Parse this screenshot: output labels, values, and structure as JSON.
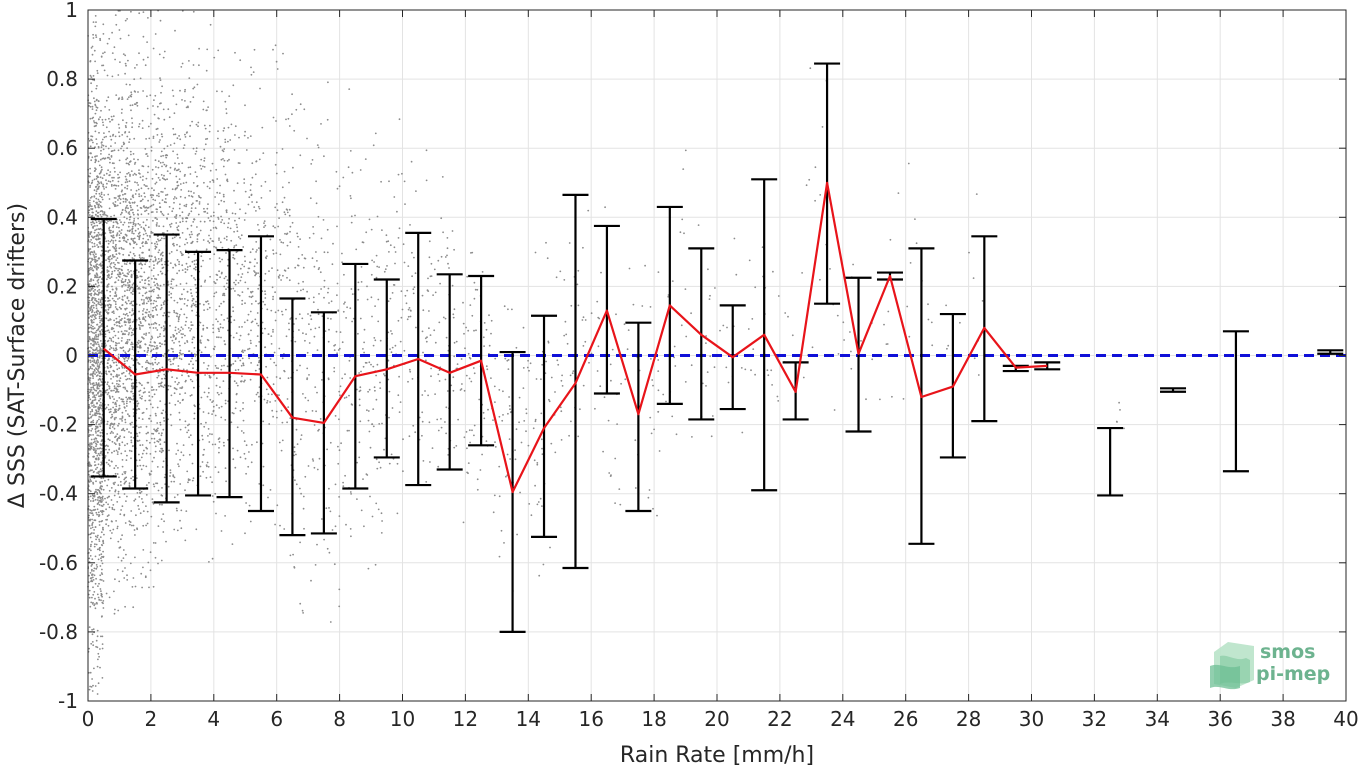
{
  "chart_data": {
    "type": "scatter",
    "xlabel": "Rain Rate [mm/h]",
    "ylabel": "Δ SSS (SAT-Surface drifters)",
    "xlim": [
      0,
      40
    ],
    "ylim": [
      -1,
      1
    ],
    "x_ticks": [
      "0",
      "2",
      "4",
      "6",
      "8",
      "10",
      "12",
      "14",
      "16",
      "18",
      "20",
      "22",
      "24",
      "26",
      "28",
      "30",
      "32",
      "34",
      "36",
      "38",
      "40"
    ],
    "y_ticks": [
      "1",
      "0.8",
      "0.6",
      "0.4",
      "0.2",
      "0",
      "-0.2",
      "-0.4",
      "-0.6",
      "-0.8",
      "-1"
    ],
    "grid": true,
    "colors": {
      "scatter": "#8c8c8c",
      "median_line": "#e8141a",
      "error_bars": "#000000",
      "zero_line": "#1010d8",
      "grid": "#e3e3e3"
    },
    "reference_line": {
      "y": 0,
      "style": "dashed"
    },
    "median_series": {
      "x": [
        0.5,
        1.5,
        2.5,
        3.5,
        4.5,
        5.5,
        6.5,
        7.5,
        8.5,
        9.5,
        10.5,
        11.5,
        12.5,
        13.5,
        14.5,
        15.5,
        16.5,
        17.5,
        18.5,
        19.5,
        20.5,
        21.5,
        22.5,
        23.5,
        24.5,
        25.5,
        26.5,
        27.5,
        28.5,
        29.5,
        30.5
      ],
      "y": [
        0.02,
        -0.055,
        -0.04,
        -0.05,
        -0.05,
        -0.055,
        -0.18,
        -0.195,
        -0.06,
        -0.04,
        -0.01,
        -0.05,
        -0.015,
        -0.395,
        -0.21,
        -0.08,
        0.13,
        -0.17,
        0.145,
        0.06,
        -0.005,
        0.06,
        -0.105,
        0.5,
        0.005,
        0.23,
        -0.12,
        -0.09,
        0.08,
        -0.035,
        -0.03
      ]
    },
    "error_bars": [
      {
        "x": 0.5,
        "low": -0.35,
        "high": 0.395
      },
      {
        "x": 1.5,
        "low": -0.385,
        "high": 0.275
      },
      {
        "x": 2.5,
        "low": -0.425,
        "high": 0.35
      },
      {
        "x": 3.5,
        "low": -0.405,
        "high": 0.3
      },
      {
        "x": 4.5,
        "low": -0.41,
        "high": 0.305
      },
      {
        "x": 5.5,
        "low": -0.45,
        "high": 0.345
      },
      {
        "x": 6.5,
        "low": -0.52,
        "high": 0.165
      },
      {
        "x": 7.5,
        "low": -0.515,
        "high": 0.125
      },
      {
        "x": 8.5,
        "low": -0.385,
        "high": 0.265
      },
      {
        "x": 9.5,
        "low": -0.295,
        "high": 0.22
      },
      {
        "x": 10.5,
        "low": -0.375,
        "high": 0.355
      },
      {
        "x": 11.5,
        "low": -0.33,
        "high": 0.235
      },
      {
        "x": 12.5,
        "low": -0.26,
        "high": 0.23
      },
      {
        "x": 13.5,
        "low": -0.8,
        "high": 0.01
      },
      {
        "x": 14.5,
        "low": -0.525,
        "high": 0.115
      },
      {
        "x": 15.5,
        "low": -0.615,
        "high": 0.465
      },
      {
        "x": 16.5,
        "low": -0.11,
        "high": 0.375
      },
      {
        "x": 17.5,
        "low": -0.45,
        "high": 0.095
      },
      {
        "x": 18.5,
        "low": -0.14,
        "high": 0.43
      },
      {
        "x": 19.5,
        "low": -0.185,
        "high": 0.31
      },
      {
        "x": 20.5,
        "low": -0.155,
        "high": 0.145
      },
      {
        "x": 21.5,
        "low": -0.39,
        "high": 0.51
      },
      {
        "x": 22.5,
        "low": -0.185,
        "high": -0.02
      },
      {
        "x": 23.5,
        "low": 0.15,
        "high": 0.845
      },
      {
        "x": 24.5,
        "low": -0.22,
        "high": 0.225
      },
      {
        "x": 25.5,
        "low": 0.22,
        "high": 0.24
      },
      {
        "x": 26.5,
        "low": -0.545,
        "high": 0.31
      },
      {
        "x": 27.5,
        "low": -0.295,
        "high": 0.12
      },
      {
        "x": 28.5,
        "low": -0.19,
        "high": 0.345
      },
      {
        "x": 29.5,
        "low": -0.045,
        "high": -0.03
      },
      {
        "x": 30.5,
        "low": -0.04,
        "high": -0.02
      },
      {
        "x": 32.5,
        "low": -0.405,
        "high": -0.21
      },
      {
        "x": 34.5,
        "low": -0.105,
        "high": -0.095
      },
      {
        "x": 36.5,
        "low": -0.335,
        "high": 0.07
      },
      {
        "x": 39.5,
        "low": 0.005,
        "high": 0.015
      }
    ],
    "scatter_density": [
      {
        "x_range": [
          0.0,
          0.5
        ],
        "y_range": [
          -1,
          1
        ],
        "count": 1400
      },
      {
        "x_range": [
          0.5,
          1.5
        ],
        "y_range": [
          -0.75,
          1
        ],
        "count": 1200
      },
      {
        "x_range": [
          1.5,
          2.5
        ],
        "y_range": [
          -0.7,
          1
        ],
        "count": 800
      },
      {
        "x_range": [
          2.5,
          3.5
        ],
        "y_range": [
          -0.6,
          1
        ],
        "count": 500
      },
      {
        "x_range": [
          3.5,
          4.5
        ],
        "y_range": [
          -0.6,
          1
        ],
        "count": 350
      },
      {
        "x_range": [
          4.5,
          5.5
        ],
        "y_range": [
          -0.6,
          0.95
        ],
        "count": 250
      },
      {
        "x_range": [
          5.5,
          6.5
        ],
        "y_range": [
          -0.6,
          0.9
        ],
        "count": 180
      },
      {
        "x_range": [
          6.5,
          7.5
        ],
        "y_range": [
          -0.8,
          0.8
        ],
        "count": 140
      },
      {
        "x_range": [
          7.5,
          8.5
        ],
        "y_range": [
          -0.8,
          0.8
        ],
        "count": 120
      },
      {
        "x_range": [
          8.5,
          9.5
        ],
        "y_range": [
          -0.7,
          0.7
        ],
        "count": 110
      },
      {
        "x_range": [
          9.5,
          10.5
        ],
        "y_range": [
          -0.5,
          0.7
        ],
        "count": 90
      },
      {
        "x_range": [
          10.5,
          11.5
        ],
        "y_range": [
          -0.5,
          0.6
        ],
        "count": 80
      },
      {
        "x_range": [
          11.5,
          12.5
        ],
        "y_range": [
          -0.5,
          0.5
        ],
        "count": 70
      },
      {
        "x_range": [
          12.5,
          13.5
        ],
        "y_range": [
          -0.6,
          0.4
        ],
        "count": 60
      },
      {
        "x_range": [
          13.5,
          14.5
        ],
        "y_range": [
          -0.7,
          0.3
        ],
        "count": 50
      },
      {
        "x_range": [
          14.5,
          15.5
        ],
        "y_range": [
          -0.6,
          0.5
        ],
        "count": 40
      },
      {
        "x_range": [
          15.5,
          16.5
        ],
        "y_range": [
          -0.5,
          0.5
        ],
        "count": 30
      },
      {
        "x_range": [
          16.5,
          17.5
        ],
        "y_range": [
          -0.5,
          0.4
        ],
        "count": 25
      },
      {
        "x_range": [
          17.5,
          18.5
        ],
        "y_range": [
          -0.5,
          0.4
        ],
        "count": 25
      },
      {
        "x_range": [
          18.5,
          19.5
        ],
        "y_range": [
          -0.4,
          0.7
        ],
        "count": 20
      },
      {
        "x_range": [
          19.5,
          20.5
        ],
        "y_range": [
          -0.3,
          0.4
        ],
        "count": 20
      },
      {
        "x_range": [
          20.5,
          21.5
        ],
        "y_range": [
          -0.4,
          0.5
        ],
        "count": 15
      },
      {
        "x_range": [
          21.5,
          22.5
        ],
        "y_range": [
          -0.3,
          0.4
        ],
        "count": 15
      },
      {
        "x_range": [
          22.5,
          23.5
        ],
        "y_range": [
          -0.2,
          0.95
        ],
        "count": 15
      },
      {
        "x_range": [
          23.5,
          24.5
        ],
        "y_range": [
          -0.2,
          0.5
        ],
        "count": 12
      },
      {
        "x_range": [
          24.5,
          25.5
        ],
        "y_range": [
          -0.2,
          0.3
        ],
        "count": 10
      },
      {
        "x_range": [
          25.5,
          26.5
        ],
        "y_range": [
          -0.6,
          0.9
        ],
        "count": 10
      },
      {
        "x_range": [
          26.5,
          27.5
        ],
        "y_range": [
          -0.3,
          0.4
        ],
        "count": 8
      },
      {
        "x_range": [
          27.5,
          28.5
        ],
        "y_range": [
          -0.2,
          0.6
        ],
        "count": 8
      },
      {
        "x_range": [
          32.5,
          33.0
        ],
        "y_range": [
          -0.25,
          -0.1
        ],
        "count": 5
      }
    ]
  },
  "logo": {
    "line1": "smos",
    "line2": "pi-mep"
  }
}
